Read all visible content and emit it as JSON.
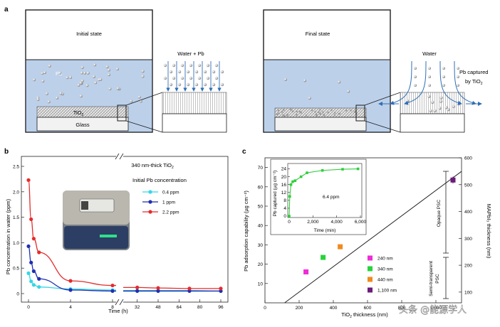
{
  "panel_a": {
    "label": "a",
    "initial_state": "Initial state",
    "final_state": "Final state",
    "pb": "Pb",
    "tio2": "TiO",
    "tio2_sub": "2",
    "glass": "Glass",
    "water_pb": "Water + Pb",
    "water": "Water",
    "pb_captured_1": "Pb captured",
    "pb_captured_2": "by TiO",
    "pb_captured_sub": "2",
    "colors": {
      "water": "#bcd0ea",
      "outline": "#1a1a1a",
      "glass": "#f2f2f2",
      "arrow": "#2f6fb6"
    }
  },
  "panel_b": {
    "label": "b",
    "title": "340 nm-thick TiO",
    "title_sub": "2",
    "legend_title": "Initial Pb concentration",
    "ylabel": "Pb concentration in water (ppm)",
    "xlabel": "Time (h)",
    "y_ticks": [
      "0",
      "0.5",
      "1.0",
      "1.5",
      "2.0",
      "2.5"
    ],
    "x_ticks": [
      "0",
      "4",
      "8",
      "32",
      "48",
      "64",
      "80",
      "96"
    ]
  },
  "panel_c": {
    "label": "c",
    "ylabel_left": "Pb adsorption capability (µg cm⁻²)",
    "ylabel_right": "MAPbI₃ thickness (nm)",
    "xlabel": "TiO₂ thickness (nm)",
    "xlabel_base": "TiO",
    "xlabel_sub": "2",
    "xlabel_tail": " thickness (nm)",
    "x_ticks": [
      "0",
      "200",
      "400",
      "600",
      "800",
      "1,000"
    ],
    "yl_ticks": [
      "10",
      "20",
      "30",
      "40",
      "50",
      "60",
      "70"
    ],
    "yr_ticks": [
      "100",
      "200",
      "300",
      "400",
      "500",
      "600"
    ],
    "opaque": "Opaque PSC",
    "semi_1": "Semi-transparent",
    "semi_2": "PSC",
    "inset_ylabel": "Pb captured (µg cm⁻²)",
    "inset_xlabel": "Time (min)",
    "inset_note": "6.4 ppm",
    "inset_x_ticks": [
      "0",
      "2,000",
      "4,000",
      "6,000"
    ],
    "inset_y_ticks": [
      "0",
      "4",
      "8",
      "12",
      "16",
      "20",
      "24"
    ]
  },
  "watermark": "头条 @能源学人",
  "chart_data": [
    {
      "type": "line",
      "title": "340 nm-thick TiO2",
      "xlabel": "Time (h)",
      "ylabel": "Pb concentration in water (ppm)",
      "x_axis": "broken: 0-8 h linear, then 32-96 h",
      "ylim": [
        0,
        2.5
      ],
      "legend_title": "Initial Pb concentration",
      "legend_position": "right",
      "series": [
        {
          "name": "0.4 ppm",
          "color": "#35d6e6",
          "x": [
            0,
            0.25,
            0.5,
            1,
            4,
            8,
            32,
            48,
            72,
            96
          ],
          "y": [
            0.4,
            0.24,
            0.17,
            0.13,
            0.09,
            0.07,
            0.06,
            0.06,
            0.06,
            0.05
          ]
        },
        {
          "name": "1 ppm",
          "color": "#1f2fb0",
          "x": [
            0,
            0.25,
            0.5,
            1,
            4,
            8,
            32,
            48,
            72,
            96
          ],
          "y": [
            0.93,
            0.61,
            0.44,
            0.29,
            0.07,
            0.05,
            0.05,
            0.05,
            0.05,
            0.05
          ]
        },
        {
          "name": "2.2 ppm",
          "color": "#e52b2b",
          "x": [
            0,
            0.25,
            0.5,
            1,
            4,
            8,
            32,
            48,
            72,
            96
          ],
          "y": [
            2.23,
            1.46,
            1.08,
            0.81,
            0.25,
            0.16,
            0.12,
            0.11,
            0.1,
            0.1
          ]
        }
      ]
    },
    {
      "type": "scatter",
      "xlabel": "TiO2 thickness (nm)",
      "ylabel": "Pb adsorption capability (µg cm⁻²)",
      "y2label": "MAPbI3 thickness (nm)",
      "xlim": [
        0,
        1150
      ],
      "ylim": [
        0,
        75
      ],
      "y2lim": [
        60,
        600
      ],
      "legend_position": "bottom-right",
      "series": [
        {
          "name": "240 nm",
          "color": "#ee2bd8",
          "x": [
            240
          ],
          "y": [
            16
          ]
        },
        {
          "name": "340 nm",
          "color": "#27d33b",
          "x": [
            340
          ],
          "y": [
            23.5
          ]
        },
        {
          "name": "440 nm",
          "color": "#f08a1e",
          "x": [
            440
          ],
          "y": [
            29
          ]
        },
        {
          "name": "1,100 nm",
          "color": "#6b1b79",
          "x": [
            1100
          ],
          "y": [
            63.5
          ]
        }
      ],
      "fit_line": {
        "x": [
          115,
          1150
        ],
        "y": [
          0,
          68
        ]
      }
    },
    {
      "type": "line",
      "title": "6.4 ppm",
      "xlabel": "Time (min)",
      "ylabel": "Pb captured (µg cm⁻²)",
      "xlim": [
        0,
        6000
      ],
      "ylim": [
        0,
        24
      ],
      "series": [
        {
          "name": "",
          "color": "#2fcf3a",
          "x": [
            0,
            50,
            150,
            300,
            500,
            1000,
            1500,
            2800,
            4500,
            5800
          ],
          "y": [
            0,
            10,
            16,
            17.5,
            18,
            20,
            22,
            23.2,
            23.8,
            24
          ]
        }
      ]
    }
  ]
}
